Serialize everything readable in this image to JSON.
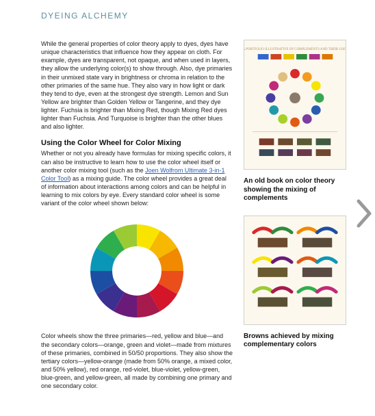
{
  "page": {
    "title": "DYEING ALCHEMY",
    "intro_paragraph": "While the general properties of color theory apply to dyes, dyes have unique characteristics that influence how they appear on cloth. For example, dyes are transparent, not opaque, and when used in layers, they allow the underlying color(s) to show through. Also, dye primaries in their unmixed state vary in brightness or chroma in relation to the other primaries of the same hue. They also vary in how light or dark they tend to dye, even at the strongest dye strength. Lemon and Sun Yellow are brighter than Golden Yellow or Tangerine, and they dye lighter. Fuchsia is brighter than Mixing Red, though Mixing Red dyes lighter than Fuchsia. And Turquoise is brighter than the other blues and also lighter.",
    "section_heading": "Using the Color Wheel for Color Mixing",
    "mixing_para_before_link": "Whether or not you already have formulas for mixing specific colors, it can also be instructive to learn how to use the color wheel itself or another color mixing tool (such as the ",
    "link_text": "Joen Wolfrom Ultimate 3-in-1 Color Tool",
    "mixing_para_after_link": ") as a mixing guide. The color wheel provides a great deal of information about interactions among colors and can be helpful in learning to mix colors by eye. Every standard color wheel is some variant of the color wheel shown below:",
    "wheel_explain": "Color wheels show the three primaries—red, yellow and blue—and the secondary colors—orange, green and violet—made from mixtures of these primaries, combined in 50/50 proportions. They also show the tertiary colors—yellow-orange (made from 50% orange, a mixed color, and 50% yellow), red orange, red-violet, blue-violet, yellow-green, blue-green, and yellow-green, all made by combining one primary and one secondary color."
  },
  "color_wheel": {
    "segments": 12,
    "outer_radius": 68,
    "inner_radius": 36,
    "start_angle_deg": -90,
    "colors": [
      "#f9e400",
      "#f6b800",
      "#f18a00",
      "#e94e1b",
      "#d5152a",
      "#a61a4d",
      "#6a1b7a",
      "#3b2f8f",
      "#1c4fa3",
      "#0a97b7",
      "#2fae4d",
      "#9acb34"
    ]
  },
  "sidebar": {
    "fig1": {
      "caption": "An old book on color theory showing the mixing of complements",
      "bg": "#fdf8ed",
      "title_line1": "A PORTFOLIO ILLUSTRATIVE OF COMPLEMENTS AND THEIR USES",
      "header_stripe": [
        "#3366cc",
        "#cc4422",
        "#e6c200",
        "#2e8b3d",
        "#aa3388",
        "#dd7700"
      ],
      "circle_colors": [
        "#d92a2a",
        "#f29b1d",
        "#f7e400",
        "#3aa655",
        "#2a5db0",
        "#7b3fa0",
        "#e05a12",
        "#a7d129",
        "#2299aa",
        "#4a3fa0",
        "#c02a7a",
        "#e0c080"
      ],
      "bottom_swatches": [
        "#7a3b2b",
        "#6b4a2e",
        "#5a5a34",
        "#3f5a3f",
        "#3a4a5a",
        "#553a5a",
        "#6a3a4a",
        "#704830"
      ]
    },
    "fig2": {
      "caption": "Browns achieved by mixing complementary colors",
      "bg": "#fdf8ed",
      "pairs": [
        {
          "c1": "#d92a2a",
          "c2": "#2e8b3d",
          "res": "#6b4a2e"
        },
        {
          "c1": "#f18a00",
          "c2": "#1c4fa3",
          "res": "#5a4a3a"
        },
        {
          "c1": "#f7e400",
          "c2": "#6a1b7a",
          "res": "#6a5a30"
        },
        {
          "c1": "#e05a12",
          "c2": "#0a97b7",
          "res": "#5a4a44"
        },
        {
          "c1": "#9acb34",
          "c2": "#a61a4d",
          "res": "#5a5034"
        },
        {
          "c1": "#2fae4d",
          "c2": "#c02a7a",
          "res": "#4a503a"
        }
      ]
    }
  },
  "nav": {
    "next_color": "#999999"
  }
}
